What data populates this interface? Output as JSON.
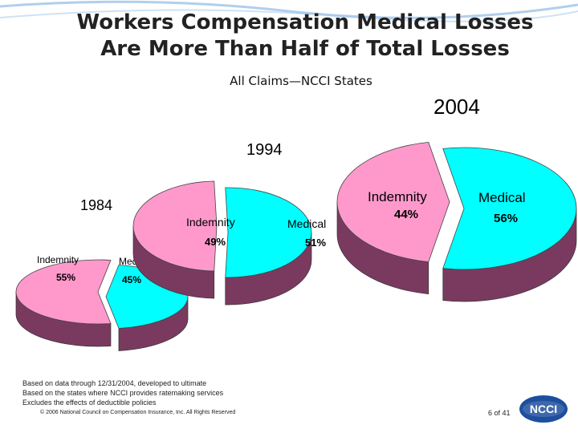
{
  "slide": {
    "title_line1": "Workers Compensation Medical Losses",
    "title_line2": "Are More Than Half of Total Losses",
    "subtitle": "All Claims—NCCI States",
    "footnotes": [
      "Based on data through 12/31/2004, developed to ultimate",
      "Based on the states where NCCI provides ratemaking services",
      "Excludes the effects of deductible policies"
    ],
    "copyright": "© 2006 National Council on Compensation Insurance, Inc. All Rights Reserved",
    "page": "6 of 41",
    "logo_text": "NCCI"
  },
  "colors": {
    "indemnity": "#ff99cc",
    "medical": "#00ffff",
    "depth": "#7a3a60",
    "logo_blue": "#1e4e9e",
    "swoosh": "#6fa8dc"
  },
  "chart_data": [
    {
      "type": "pie",
      "title": "1984",
      "categories": [
        "Indemnity",
        "Medical"
      ],
      "values": [
        55,
        45
      ],
      "value_labels": [
        "55%",
        "45%"
      ]
    },
    {
      "type": "pie",
      "title": "1994",
      "categories": [
        "Indemnity",
        "Medical"
      ],
      "values": [
        49,
        51
      ],
      "value_labels": [
        "49%",
        "51%"
      ]
    },
    {
      "type": "pie",
      "title": "2004",
      "categories": [
        "Indemnity",
        "Medical"
      ],
      "values": [
        44,
        56
      ],
      "value_labels": [
        "44%",
        "56%"
      ]
    }
  ]
}
